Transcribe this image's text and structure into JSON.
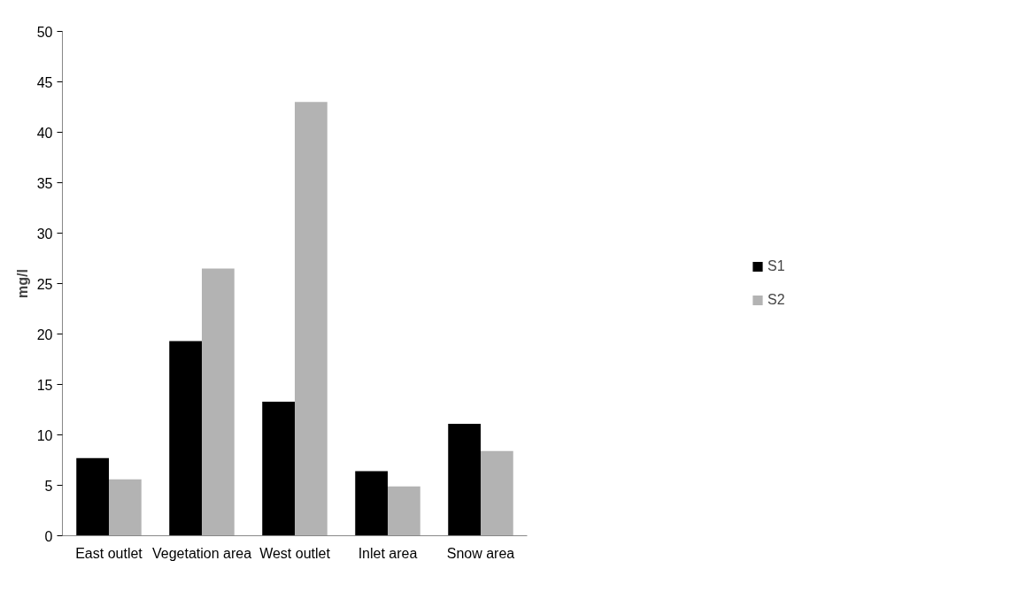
{
  "chart_data": {
    "type": "bar",
    "ylabel": "mg/l",
    "categories": [
      "East outlet",
      "Vegetation area",
      "West outlet",
      "Inlet area",
      "Snow area"
    ],
    "series": [
      {
        "name": "S1",
        "color": "#000000",
        "values": [
          7.7,
          19.3,
          13.3,
          6.4,
          11.1
        ]
      },
      {
        "name": "S2",
        "color": "#b3b3b3",
        "values": [
          5.6,
          26.5,
          43.0,
          4.9,
          8.4
        ]
      }
    ],
    "ylim": [
      0,
      50
    ],
    "yticks": [
      0,
      5,
      10,
      15,
      20,
      25,
      30,
      35,
      40,
      45,
      50
    ],
    "grid": false,
    "legend": "right"
  }
}
